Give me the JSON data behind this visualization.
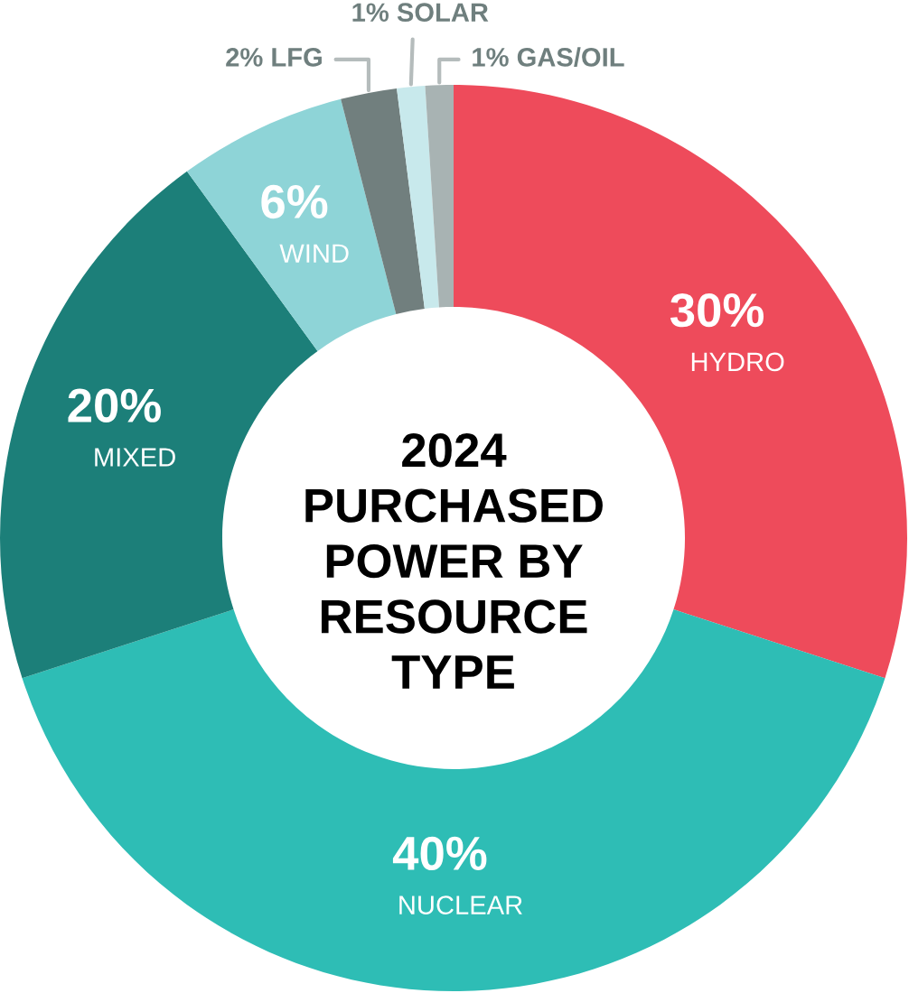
{
  "chart_data": {
    "type": "donut",
    "title": "2024\nPURCHASED\nPOWER BY\nRESOURCE\nTYPE",
    "categories": [
      "HYDRO",
      "NUCLEAR",
      "MIXED",
      "WIND",
      "LFG",
      "SOLAR",
      "GAS/OIL"
    ],
    "values": [
      30,
      40,
      20,
      6,
      2,
      1,
      1
    ],
    "value_labels": [
      "30%",
      "40%",
      "20%",
      "6%",
      "2%",
      "1%",
      "1%"
    ],
    "colors": [
      "#ee4b5b",
      "#2ebdb5",
      "#1c7f79",
      "#8ed4d7",
      "#717f7e",
      "#c8e9ec",
      "#a8b3b3"
    ]
  }
}
